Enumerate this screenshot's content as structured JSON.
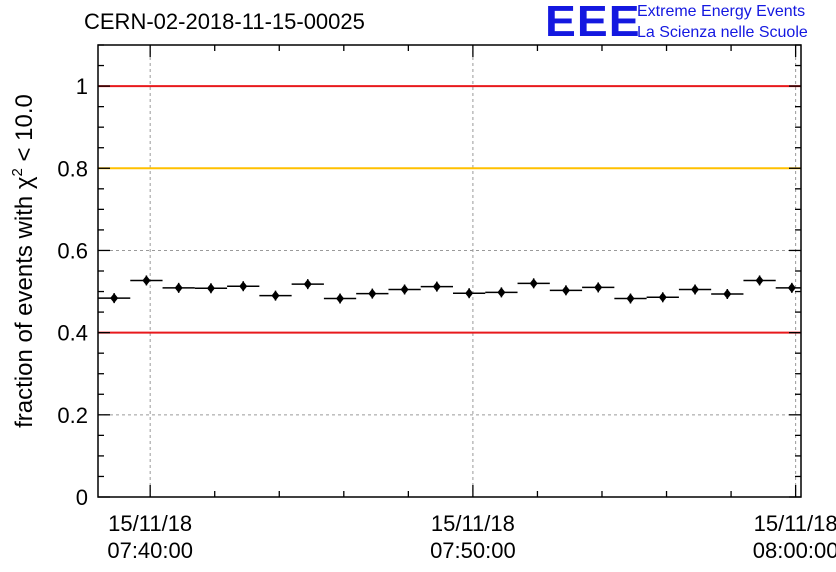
{
  "title": "CERN-02-2018-11-15-00025",
  "logo": {
    "mark": "EEE",
    "line1": "Extreme Energy Events",
    "line2": "La Scienza nelle Scuole",
    "color": "#1418e0"
  },
  "chart_data": {
    "type": "scatter",
    "title": "CERN-02-2018-11-15-00025",
    "ylabel": "fraction of events with",
    "ylabel_symbol": "χ",
    "ylabel_sup": "2",
    "ylabel_tail": " < 10.0",
    "xlabel": "",
    "ylim": [
      0,
      1.1
    ],
    "xlim": [
      "15/11/18 07:38:23",
      "15/11/18 08:00:10"
    ],
    "y_ticks": [
      {
        "value": 0,
        "label": "0"
      },
      {
        "value": 0.2,
        "label": "0.2"
      },
      {
        "value": 0.4,
        "label": "0.4"
      },
      {
        "value": 0.6,
        "label": "0.6"
      },
      {
        "value": 0.8,
        "label": "0.8"
      },
      {
        "value": 1,
        "label": "1"
      }
    ],
    "x_ticks": [
      {
        "value": "07:40:00",
        "date": "15/11/18",
        "time": "07:40:00"
      },
      {
        "value": "07:50:00",
        "date": "15/11/18",
        "time": "07:50:00"
      },
      {
        "value": "08:00:00",
        "date": "15/11/18",
        "time": "08:00:00"
      }
    ],
    "grid": true,
    "reference_lines": [
      {
        "y": 1.0,
        "color": "#e8191c"
      },
      {
        "y": 0.8,
        "color": "#ffc000"
      },
      {
        "y": 0.4,
        "color": "#e8191c"
      }
    ],
    "series": [
      {
        "marker_color": "#000000",
        "bin_width_minutes": 1,
        "x": [
          "07:38:53",
          "07:39:53",
          "07:40:53",
          "07:41:53",
          "07:42:53",
          "07:43:53",
          "07:44:53",
          "07:45:53",
          "07:46:53",
          "07:47:53",
          "07:48:53",
          "07:49:53",
          "07:50:53",
          "07:51:53",
          "07:52:53",
          "07:53:53",
          "07:54:53",
          "07:55:53",
          "07:56:53",
          "07:57:53",
          "07:58:53",
          "07:59:53"
        ],
        "y": [
          0.484,
          0.527,
          0.509,
          0.508,
          0.513,
          0.49,
          0.518,
          0.483,
          0.495,
          0.505,
          0.512,
          0.496,
          0.498,
          0.52,
          0.503,
          0.51,
          0.483,
          0.486,
          0.505,
          0.494,
          0.527,
          0.509
        ]
      }
    ]
  }
}
